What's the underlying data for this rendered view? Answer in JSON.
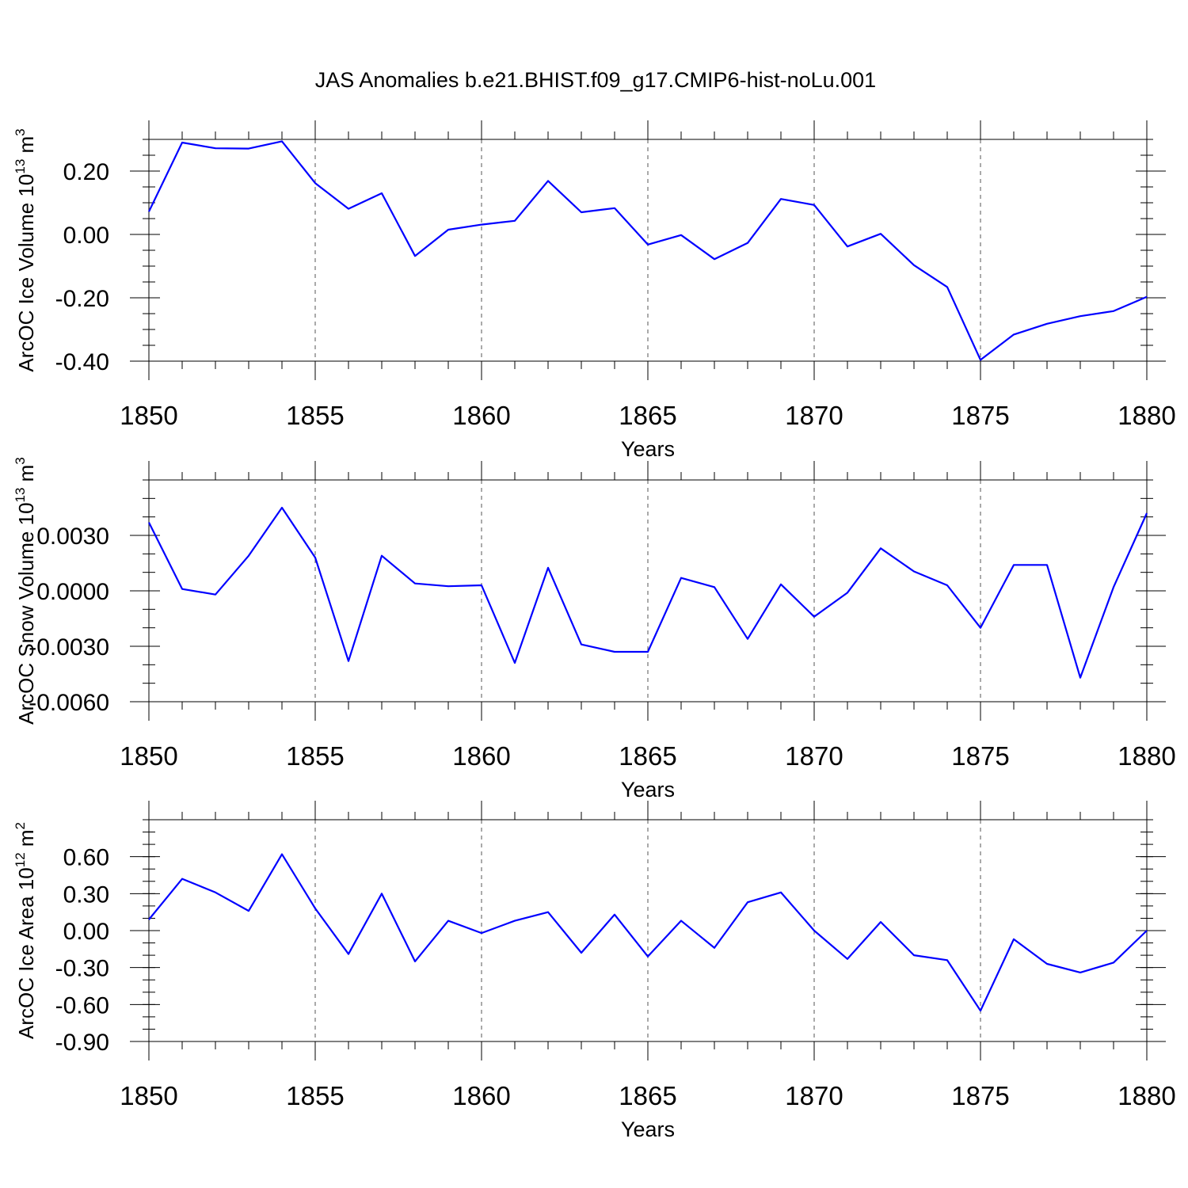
{
  "title": "JAS Anomalies b.e21.BHIST.f09_g17.CMIP6-hist-noLu.001",
  "line_color": "#0000ff",
  "chart_data": [
    {
      "type": "line",
      "ylabel_main": "ArcOC Ice Volume 10",
      "ylabel_exp": "13",
      "ylabel_unit": " m",
      "ylabel_unit_exp": "3",
      "xlabel": "Years",
      "xlim": [
        1850,
        1880
      ],
      "xticks": [
        1850,
        1855,
        1860,
        1865,
        1870,
        1875,
        1880
      ],
      "ylim": [
        -0.4,
        0.3
      ],
      "yticks": [
        -0.4,
        -0.2,
        0.0,
        0.2
      ],
      "yticklabels": [
        "-0.40",
        "-0.20",
        "0.00",
        "0.20"
      ],
      "yminor": 0.05,
      "x": [
        1850,
        1851,
        1852,
        1853,
        1854,
        1855,
        1856,
        1857,
        1858,
        1859,
        1860,
        1861,
        1862,
        1863,
        1864,
        1865,
        1866,
        1867,
        1868,
        1869,
        1870,
        1871,
        1872,
        1873,
        1874,
        1875,
        1876,
        1877,
        1878,
        1879,
        1880
      ],
      "values": [
        0.072,
        0.29,
        0.272,
        0.271,
        0.294,
        0.162,
        0.081,
        0.13,
        -0.068,
        0.015,
        0.031,
        0.043,
        0.169,
        0.07,
        0.083,
        -0.032,
        -0.002,
        -0.078,
        -0.027,
        0.112,
        0.093,
        -0.038,
        0.002,
        -0.097,
        -0.166,
        -0.396,
        -0.316,
        -0.282,
        -0.258,
        -0.242,
        -0.197
      ]
    },
    {
      "type": "line",
      "ylabel_main": "ArcOC Snow Volume 10",
      "ylabel_exp": "13",
      "ylabel_unit": " m",
      "ylabel_unit_exp": "3",
      "xlabel": "Years",
      "xlim": [
        1850,
        1880
      ],
      "xticks": [
        1850,
        1855,
        1860,
        1865,
        1870,
        1875,
        1880
      ],
      "ylim": [
        -0.006,
        0.006
      ],
      "yticks": [
        -0.006,
        -0.003,
        0.0,
        0.003
      ],
      "yticklabels": [
        "-0.0060",
        "-0.0030",
        "0.0000",
        "0.0030"
      ],
      "yminor": 0.001,
      "x": [
        1850,
        1851,
        1852,
        1853,
        1854,
        1855,
        1856,
        1857,
        1858,
        1859,
        1860,
        1861,
        1862,
        1863,
        1864,
        1865,
        1866,
        1867,
        1868,
        1869,
        1870,
        1871,
        1872,
        1873,
        1874,
        1875,
        1876,
        1877,
        1878,
        1879,
        1880
      ],
      "values": [
        0.0037,
        0.0001,
        -0.0002,
        0.0019,
        0.0045,
        0.0018,
        -0.0038,
        0.0019,
        0.0004,
        0.00025,
        0.0003,
        -0.0039,
        0.00125,
        -0.0029,
        -0.0033,
        -0.0033,
        0.0007,
        0.0002,
        -0.0026,
        0.00035,
        -0.0014,
        -0.0001,
        0.0023,
        0.00105,
        0.0003,
        -0.002,
        0.0014,
        0.0014,
        -0.0047,
        0.0002,
        0.0042
      ]
    },
    {
      "type": "line",
      "ylabel_main": "ArcOC Ice Area 10",
      "ylabel_exp": "12",
      "ylabel_unit": " m",
      "ylabel_unit_exp": "2",
      "xlabel": "Years",
      "xlim": [
        1850,
        1880
      ],
      "xticks": [
        1850,
        1855,
        1860,
        1865,
        1870,
        1875,
        1880
      ],
      "ylim": [
        -0.9,
        0.9
      ],
      "yticks": [
        -0.9,
        -0.6,
        -0.3,
        0.0,
        0.3,
        0.6
      ],
      "yticklabels": [
        "-0.90",
        "-0.60",
        "-0.30",
        "0.00",
        "0.30",
        "0.60"
      ],
      "yminor": 0.1,
      "x": [
        1850,
        1851,
        1852,
        1853,
        1854,
        1855,
        1856,
        1857,
        1858,
        1859,
        1860,
        1861,
        1862,
        1863,
        1864,
        1865,
        1866,
        1867,
        1868,
        1869,
        1870,
        1871,
        1872,
        1873,
        1874,
        1875,
        1876,
        1877,
        1878,
        1879,
        1880
      ],
      "values": [
        0.09,
        0.42,
        0.31,
        0.16,
        0.62,
        0.18,
        -0.19,
        0.3,
        -0.25,
        0.08,
        -0.02,
        0.08,
        0.15,
        -0.18,
        0.13,
        -0.21,
        0.08,
        -0.14,
        0.23,
        0.31,
        0.0,
        -0.23,
        0.07,
        -0.2,
        -0.24,
        -0.65,
        -0.07,
        -0.27,
        -0.34,
        -0.26,
        0.0
      ]
    }
  ]
}
